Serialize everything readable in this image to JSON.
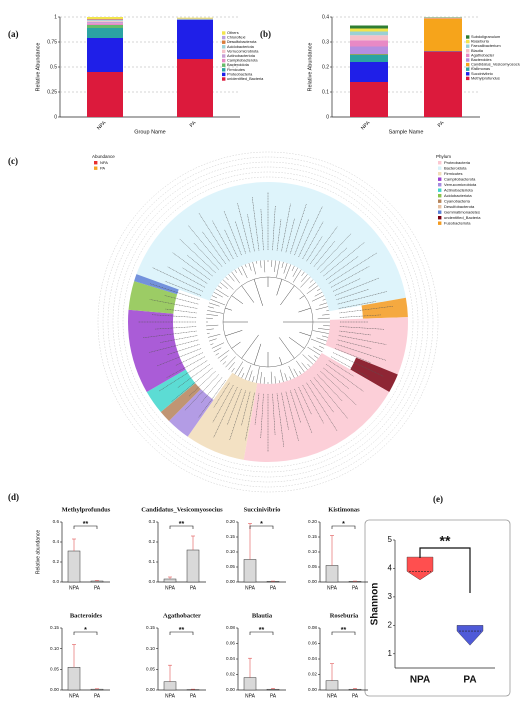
{
  "chart_data": [
    {
      "type": "stacked_bar",
      "panel_label": "(a)",
      "ylabel": "Relative Abundance",
      "xlabel": "Group Name",
      "categories": [
        "NPA",
        "PA"
      ],
      "ylim": [
        0,
        1
      ],
      "yticks": [
        0,
        0.25,
        0.5,
        0.75,
        1
      ],
      "grid": true,
      "series": [
        {
          "name": "Others",
          "color": "#f2e44c",
          "values": [
            0.02,
            0.008
          ]
        },
        {
          "name": "Chloroflexi",
          "color": "#b9a0e0",
          "values": [
            0.005,
            0.001
          ]
        },
        {
          "name": "Desulfobacterota",
          "color": "#d97d3a",
          "values": [
            0.005,
            0.001
          ]
        },
        {
          "name": "Acidobacteriota",
          "color": "#9ad1d4",
          "values": [
            0.008,
            0.002
          ]
        },
        {
          "name": "Verrucomicrobiota",
          "color": "#f5c0c8",
          "values": [
            0.01,
            0.001
          ]
        },
        {
          "name": "Actinobacteriota",
          "color": "#c69fd6",
          "values": [
            0.015,
            0.002
          ]
        },
        {
          "name": "Campilobacterota",
          "color": "#e889c5",
          "values": [
            0.017,
            0.001
          ]
        },
        {
          "name": "Bacteroidota",
          "color": "#66bb6a",
          "values": [
            0.03,
            0.001
          ]
        },
        {
          "name": "Firmicutes",
          "color": "#2ba3a3",
          "values": [
            0.1,
            0.003
          ]
        },
        {
          "name": "Proteobacteria",
          "color": "#1f1fe8",
          "values": [
            0.34,
            0.393
          ]
        },
        {
          "name": "unidentified_Bacteria",
          "color": "#dc1a3c",
          "values": [
            0.45,
            0.58
          ]
        }
      ]
    },
    {
      "type": "stacked_bar",
      "panel_label": "(b)",
      "ylabel": "Relative Abundance",
      "xlabel": "Sample Name",
      "categories": [
        "NPA",
        "PA"
      ],
      "ylim": [
        0,
        0.4
      ],
      "yticks": [
        0,
        0.1,
        0.2,
        0.3,
        0.4
      ],
      "grid": true,
      "series": [
        {
          "name": "Subdoligranulum",
          "color": "#2e7d32",
          "values": [
            0.012,
            0.001
          ]
        },
        {
          "name": "Roseburia",
          "color": "#f2e44c",
          "values": [
            0.012,
            0.001
          ]
        },
        {
          "name": "Faecalibacterium",
          "color": "#9ad1d4",
          "values": [
            0.015,
            0.001
          ]
        },
        {
          "name": "Blautia",
          "color": "#f5c0c8",
          "values": [
            0.02,
            0.001
          ]
        },
        {
          "name": "Agathobacter",
          "color": "#e889c5",
          "values": [
            0.025,
            0.001
          ]
        },
        {
          "name": "Bacteroides",
          "color": "#b58ee0",
          "values": [
            0.03,
            0.001
          ]
        },
        {
          "name": "Candidatus_Vesicomyosocius",
          "color": "#f6a41b",
          "values": [
            0.002,
            0.13
          ]
        },
        {
          "name": "Kistimonas",
          "color": "#2ba3a3",
          "values": [
            0.03,
            0.001
          ]
        },
        {
          "name": "Succinivibrio",
          "color": "#1f1fe8",
          "values": [
            0.08,
            0.001
          ]
        },
        {
          "name": "Methylprofundus",
          "color": "#dc1a3c",
          "values": [
            0.14,
            0.262
          ]
        }
      ]
    },
    {
      "type": "tree",
      "panel_label": "(c)",
      "abundance_title": "Abundance",
      "abundance": [
        {
          "name": "NPA",
          "color": "#e8302f"
        },
        {
          "name": "PA",
          "color": "#f5a623"
        }
      ],
      "phylum_title": "Phylum",
      "phyla": [
        {
          "name": "Proteobacteria",
          "color": "#fbc7d1"
        },
        {
          "name": "Bacteroidota",
          "color": "#d8f2fa"
        },
        {
          "name": "Firmicutes",
          "color": "#f1dcb8"
        },
        {
          "name": "Campilobacterota",
          "color": "#9b3fd0"
        },
        {
          "name": "Verrucomicrobiota",
          "color": "#a68be0"
        },
        {
          "name": "Actinobacteriota",
          "color": "#3fd6cc"
        },
        {
          "name": "Acidobacteriota",
          "color": "#8bc34a"
        },
        {
          "name": "Cyanobacteria",
          "color": "#b5835a"
        },
        {
          "name": "Desulfobacterota",
          "color": "#e6c0a0"
        },
        {
          "name": "Gemmatimonadetes",
          "color": "#5a7fd6"
        },
        {
          "name": "undentified_Bacteria",
          "color": "#7a0010"
        },
        {
          "name": "Fusobacteriota",
          "color": "#f39a1e"
        }
      ]
    },
    {
      "type": "bar",
      "panel_label": "(d)",
      "title": "Methylprofundus",
      "ylabel": "Relative abundance",
      "categories": [
        "NPA",
        "PA"
      ],
      "values": [
        0.31,
        0.01
      ],
      "errors": [
        0.12,
        0.005
      ],
      "ylim": [
        0,
        0.6
      ],
      "yticks": [
        {
          "value": 0,
          "label": "0.0"
        },
        0.2,
        0.4,
        0.6
      ],
      "significance": "**"
    },
    {
      "type": "bar",
      "title": "Candidatus_Vesicomyosocius",
      "categories": [
        "NPA",
        "PA"
      ],
      "values": [
        0.015,
        0.16
      ],
      "errors": [
        0.01,
        0.07
      ],
      "ylim": [
        0,
        0.3
      ],
      "yticks": [
        {
          "value": 0,
          "label": "0.0"
        },
        0.1,
        0.2,
        0.3
      ],
      "significance": "**"
    },
    {
      "type": "bar",
      "title": "Succinivibrio",
      "categories": [
        "NPA",
        "PA"
      ],
      "values": [
        0.075,
        0.002
      ],
      "errors": [
        0.12,
        0.001
      ],
      "ylim": [
        0,
        0.2
      ],
      "yticks": [
        {
          "value": 0,
          "label": "0.00"
        },
        0.05,
        {
          "value": 0.1,
          "label": "0.10"
        },
        0.15,
        {
          "value": 0.2,
          "label": "0.20"
        }
      ],
      "significance": "*"
    },
    {
      "type": "bar",
      "title": "Kistimonas",
      "categories": [
        "NPA",
        "PA"
      ],
      "values": [
        0.055,
        0.002
      ],
      "errors": [
        0.1,
        0.001
      ],
      "ylim": [
        0,
        0.2
      ],
      "yticks": [
        {
          "value": 0,
          "label": "0.00"
        },
        0.05,
        {
          "value": 0.1,
          "label": "0.10"
        },
        0.15,
        {
          "value": 0.2,
          "label": "0.20"
        }
      ],
      "significance": "*"
    },
    {
      "type": "bar",
      "title": "Bacteroides",
      "categories": [
        "NPA",
        "PA"
      ],
      "values": [
        0.055,
        0.002
      ],
      "errors": [
        0.055,
        0.001
      ],
      "ylim": [
        0,
        0.15
      ],
      "yticks": [
        {
          "value": 0,
          "label": "0.00"
        },
        0.05,
        {
          "value": 0.1,
          "label": "0.10"
        },
        0.15
      ],
      "significance": "*"
    },
    {
      "type": "bar",
      "title": "Agathobacter",
      "categories": [
        "NPA",
        "PA"
      ],
      "values": [
        0.02,
        0.001
      ],
      "errors": [
        0.04,
        0.001
      ],
      "ylim": [
        0,
        0.15
      ],
      "yticks": [
        {
          "value": 0,
          "label": "0.00"
        },
        0.05,
        {
          "value": 0.1,
          "label": "0.10"
        },
        0.15
      ],
      "significance": "**"
    },
    {
      "type": "bar",
      "title": "Blautia",
      "categories": [
        "NPA",
        "PA"
      ],
      "values": [
        0.016,
        0.001
      ],
      "errors": [
        0.025,
        0.001
      ],
      "ylim": [
        0,
        0.08
      ],
      "yticks": [
        {
          "value": 0,
          "label": "0.00"
        },
        0.02,
        0.04,
        0.06,
        0.08
      ],
      "significance": "**"
    },
    {
      "type": "bar",
      "title": "Roseburia",
      "categories": [
        "NPA",
        "PA"
      ],
      "values": [
        0.012,
        0.001
      ],
      "errors": [
        0.022,
        0.001
      ],
      "ylim": [
        0,
        0.08
      ],
      "yticks": [
        {
          "value": 0,
          "label": "0.00"
        },
        0.02,
        0.04,
        0.06,
        0.08
      ],
      "significance": "**"
    },
    {
      "type": "violin",
      "panel_label": "(e)",
      "ylabel": "Shannon",
      "categories": [
        "NPA",
        "PA"
      ],
      "colors": [
        "#ff4f4f",
        "#4f5ad8"
      ],
      "min": [
        3.6,
        1.3
      ],
      "median": [
        3.9,
        1.8
      ],
      "max": [
        4.4,
        2.0
      ],
      "ylim": [
        0.5,
        5
      ],
      "yticks": [
        1,
        2,
        3,
        4,
        5
      ],
      "significance": "**"
    }
  ]
}
